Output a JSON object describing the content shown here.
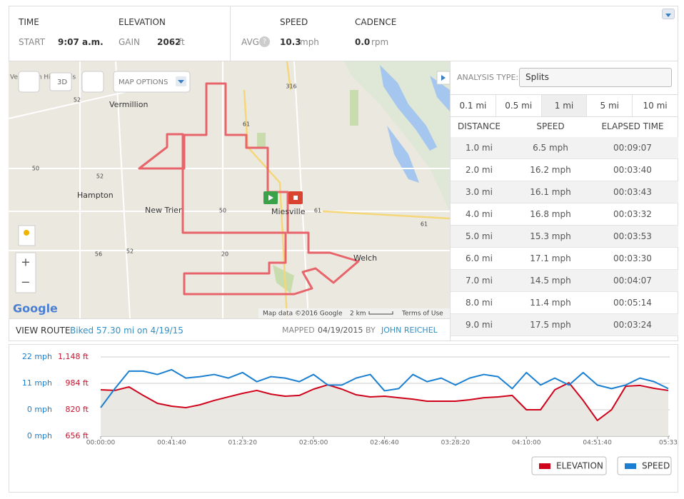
{
  "header": {
    "time_label": "TIME",
    "start_label": "START",
    "start_value": "9:07 a.m.",
    "elevation_label": "ELEVATION",
    "gain_label": "GAIN",
    "gain_value": "2062",
    "gain_unit": "ft",
    "speed_label": "SPEED",
    "avg_label": "AVG",
    "help_icon": "?",
    "avg_value": "10.3",
    "avg_unit": "mph",
    "cadence_label": "CADENCE",
    "cadence_value": "0.0",
    "cadence_unit": "rpm"
  },
  "map": {
    "map_options": "MAP OPTIONS",
    "three_d": "3D",
    "places": [
      "Vermillion",
      "Hampton",
      "New Trier",
      "Miesville",
      "Welch",
      "Vermillion Highlands"
    ],
    "shields": [
      "52",
      "316",
      "61",
      "50",
      "52",
      "50",
      "61",
      "61",
      "56",
      "52",
      "20"
    ],
    "google": "Google",
    "attribution": "Map data ©2016 Google",
    "scale": "2 km",
    "terms": "Terms of Use",
    "zoom_in": "+",
    "zoom_out": "−"
  },
  "analysis": {
    "type_label": "ANALYSIS TYPE:",
    "type_value": "Splits",
    "tabs": [
      "0.1 mi",
      "0.5 mi",
      "1 mi",
      "5 mi",
      "10 mi"
    ],
    "active_tab": 2,
    "columns": [
      "DISTANCE",
      "SPEED",
      "ELAPSED TIME"
    ],
    "rows": [
      [
        "1.0 mi",
        "6.5 mph",
        "00:09:07"
      ],
      [
        "2.0 mi",
        "16.2 mph",
        "00:03:40"
      ],
      [
        "3.0 mi",
        "16.1 mph",
        "00:03:43"
      ],
      [
        "4.0 mi",
        "16.8 mph",
        "00:03:32"
      ],
      [
        "5.0 mi",
        "15.3 mph",
        "00:03:53"
      ],
      [
        "6.0 mi",
        "17.1 mph",
        "00:03:30"
      ],
      [
        "7.0 mi",
        "14.5 mph",
        "00:04:07"
      ],
      [
        "8.0 mi",
        "11.4 mph",
        "00:05:14"
      ],
      [
        "9.0 mi",
        "17.5 mph",
        "00:03:24"
      ]
    ]
  },
  "route": {
    "view_route": "VIEW ROUTE",
    "summary": "Biked 57.30 mi on 4/19/15",
    "mapped_label": "MAPPED",
    "mapped_date": "04/19/2015",
    "by_label": "BY",
    "author": "JOHN REICHEL"
  },
  "chart": {
    "type": "line",
    "speed_tick_labels": [
      "22 mph",
      "11 mph",
      "0 mph",
      "0 mph"
    ],
    "xlim": [
      0,
      20050
    ],
    "ylim": [
      656,
      1148
    ],
    "y2lim": [
      -11,
      22
    ],
    "yticks": [
      {
        "value": 1148,
        "label": "1,148 ft"
      },
      {
        "value": 984,
        "label": "984 ft"
      },
      {
        "value": 820,
        "label": "820 ft"
      },
      {
        "value": 656,
        "label": "656 ft"
      }
    ],
    "xticks": [
      {
        "value": 0,
        "label": "00:00:00"
      },
      {
        "value": 2500,
        "label": "00:41:40"
      },
      {
        "value": 5000,
        "label": "01:23:20"
      },
      {
        "value": 7500,
        "label": "02:05:00"
      },
      {
        "value": 10000,
        "label": "02:46:40"
      },
      {
        "value": 12500,
        "label": "03:28:20"
      },
      {
        "value": 15000,
        "label": "04:10:00"
      },
      {
        "value": 17500,
        "label": "04:51:40"
      },
      {
        "value": 20000,
        "label": "05:33"
      }
    ],
    "x": [
      0,
      500,
      1000,
      1500,
      2000,
      2500,
      3000,
      3500,
      4000,
      4500,
      5000,
      5500,
      6000,
      6500,
      7000,
      7500,
      8000,
      8500,
      9000,
      9500,
      10000,
      10500,
      11000,
      11500,
      12000,
      12500,
      13000,
      13500,
      14000,
      14500,
      15000,
      15500,
      16000,
      16500,
      17000,
      17500,
      18000,
      18500,
      19000,
      19500,
      20000
    ],
    "series": [
      {
        "name": "ELEVATION",
        "color": "#d0021b",
        "values": [
          944,
          940,
          962,
          909,
          860,
          842,
          833,
          851,
          878,
          900,
          922,
          940,
          917,
          904,
          909,
          948,
          975,
          948,
          913,
          900,
          904,
          895,
          886,
          873,
          873,
          873,
          882,
          895,
          900,
          909,
          820,
          820,
          944,
          988,
          878,
          754,
          820,
          966,
          971,
          953,
          940
        ]
      },
      {
        "name": "SPEED",
        "color": "#1a7fd0",
        "axis": "y2",
        "values": [
          0.9,
          8.8,
          16.1,
          16.1,
          14.7,
          16.7,
          13.2,
          13.8,
          14.7,
          13.2,
          15.5,
          11.7,
          13.8,
          13.2,
          11.7,
          14.7,
          10.3,
          10.3,
          13.2,
          14.7,
          7.9,
          8.8,
          14.7,
          11.7,
          13.2,
          10.3,
          13.2,
          14.7,
          13.8,
          8.8,
          15.5,
          10.3,
          13.2,
          10.3,
          15.5,
          10.3,
          8.8,
          10.3,
          13.2,
          11.7,
          8.8
        ]
      }
    ]
  }
}
